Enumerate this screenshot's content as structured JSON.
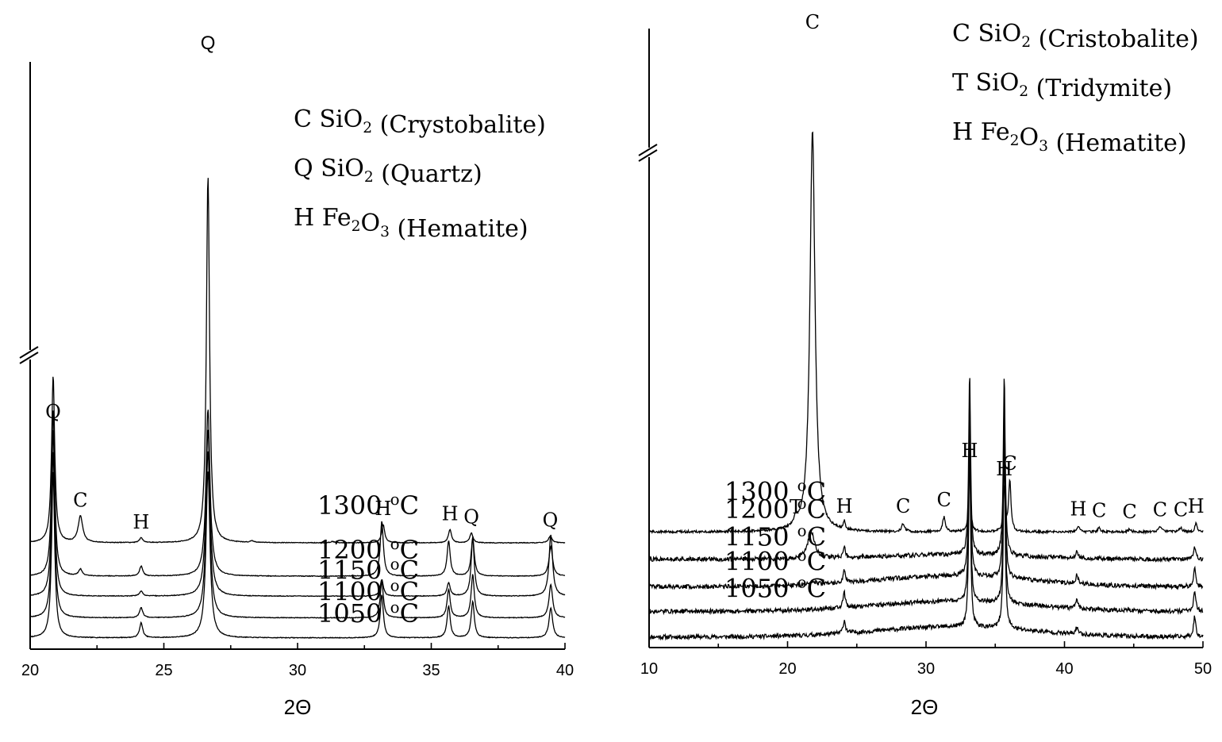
{
  "chart_data": [
    {
      "type": "line",
      "xlabel": "2Θ",
      "ylabel": "",
      "xlim": [
        20,
        40
      ],
      "xticks": [
        20,
        25,
        30,
        35,
        40
      ],
      "axis_break": true,
      "legend": {
        "placement": "top-right",
        "entries": [
          {
            "symbol": "C",
            "formula": [
              "SiO",
              "2"
            ],
            "name": "(Crystobalite)"
          },
          {
            "symbol": "Q",
            "formula": [
              "SiO",
              "2"
            ],
            "name": "(Quartz)"
          },
          {
            "symbol": "H",
            "formula": [
              "Fe",
              "2",
              "O",
              "3"
            ],
            "name": "(Hematite)"
          }
        ]
      },
      "series": [
        {
          "name": "1050 °C",
          "baseline": 0.2,
          "peaks": [
            {
              "x": 20.86,
              "h": 10,
              "w": 0.07
            },
            {
              "x": 24.15,
              "h": 0.9,
              "w": 0.07
            },
            {
              "x": 26.65,
              "h": 10,
              "w": 0.09
            },
            {
              "x": 33.15,
              "h": 2.6,
              "w": 0.07
            },
            {
              "x": 35.65,
              "h": 1.9,
              "w": 0.07
            },
            {
              "x": 36.55,
              "h": 2.2,
              "w": 0.07
            },
            {
              "x": 39.47,
              "h": 1.8,
              "w": 0.08
            }
          ]
        },
        {
          "name": "1100 °C",
          "baseline": 1.4,
          "peaks": [
            {
              "x": 20.86,
              "h": 10,
              "w": 0.07
            },
            {
              "x": 24.15,
              "h": 0.6,
              "w": 0.07
            },
            {
              "x": 26.65,
              "h": 10,
              "w": 0.09
            },
            {
              "x": 33.15,
              "h": 2.2,
              "w": 0.07
            },
            {
              "x": 35.65,
              "h": 1.7,
              "w": 0.07
            },
            {
              "x": 36.55,
              "h": 2.6,
              "w": 0.07
            },
            {
              "x": 39.47,
              "h": 2.0,
              "w": 0.08
            }
          ]
        },
        {
          "name": "1150 °C",
          "baseline": 2.7,
          "peaks": [
            {
              "x": 20.86,
              "h": 10,
              "w": 0.07
            },
            {
              "x": 24.15,
              "h": 0.3,
              "w": 0.07
            },
            {
              "x": 26.65,
              "h": 10,
              "w": 0.09
            },
            {
              "x": 33.15,
              "h": 1.0,
              "w": 0.07
            },
            {
              "x": 35.65,
              "h": 0.8,
              "w": 0.07
            },
            {
              "x": 36.55,
              "h": 3.5,
              "w": 0.07
            },
            {
              "x": 39.47,
              "h": 3.7,
              "w": 0.08
            }
          ]
        },
        {
          "name": "1200 °C",
          "baseline": 3.9,
          "peaks": [
            {
              "x": 20.86,
              "h": 10,
              "w": 0.07
            },
            {
              "x": 21.88,
              "h": 0.4,
              "w": 0.08
            },
            {
              "x": 24.15,
              "h": 0.6,
              "w": 0.07
            },
            {
              "x": 26.65,
              "h": 10,
              "w": 0.09
            },
            {
              "x": 33.15,
              "h": 3.3,
              "w": 0.07
            },
            {
              "x": 35.65,
              "h": 2.1,
              "w": 0.07
            },
            {
              "x": 36.55,
              "h": 2.3,
              "w": 0.07
            },
            {
              "x": 39.47,
              "h": 1.8,
              "w": 0.08
            }
          ]
        },
        {
          "name": "1300 °C",
          "baseline": 5.9,
          "peaks": [
            {
              "x": 20.86,
              "h": 10,
              "w": 0.07
            },
            {
              "x": 21.88,
              "h": 1.6,
              "w": 0.1
            },
            {
              "x": 24.15,
              "h": 0.3,
              "w": 0.07
            },
            {
              "x": 26.65,
              "h": 22,
              "w": 0.07
            },
            {
              "x": 28.3,
              "h": 0.1,
              "w": 0.08
            },
            {
              "x": 31.3,
              "h": 0.08,
              "w": 0.08
            },
            {
              "x": 33.2,
              "h": 1.1,
              "w": 0.07
            },
            {
              "x": 35.7,
              "h": 0.8,
              "w": 0.07
            },
            {
              "x": 36.5,
              "h": 0.6,
              "w": 0.07
            },
            {
              "x": 39.45,
              "h": 0.4,
              "w": 0.08
            }
          ]
        }
      ],
      "peak_labels": [
        {
          "text": "Q",
          "x": 26.65,
          "series": "1300 °C",
          "top": true
        },
        {
          "text": "Q",
          "x": 20.86,
          "series": "1300 °C"
        },
        {
          "text": "C",
          "x": 21.88,
          "series": "1300 °C"
        },
        {
          "text": "H",
          "x": 24.15,
          "series": "1300 °C"
        },
        {
          "text": "H",
          "x": 33.2,
          "series": "1300 °C"
        },
        {
          "text": "H",
          "x": 35.7,
          "series": "1300 °C"
        },
        {
          "text": "Q",
          "x": 36.5,
          "series": "1300 °C"
        },
        {
          "text": "Q",
          "x": 39.45,
          "series": "1300 °C"
        }
      ]
    },
    {
      "type": "line",
      "xlabel": "2Θ",
      "ylabel": "",
      "xlim": [
        10,
        50
      ],
      "xticks": [
        10,
        20,
        30,
        40,
        50
      ],
      "axis_break": true,
      "legend": {
        "placement": "top-right",
        "entries": [
          {
            "symbol": "C",
            "formula": [
              "SiO",
              "2"
            ],
            "name": "(Cristobalite)"
          },
          {
            "symbol": "T",
            "formula": [
              "SiO",
              "2"
            ],
            "name": "(Tridymite)"
          },
          {
            "symbol": "H",
            "formula": [
              "Fe",
              "2",
              "O",
              "3"
            ],
            "name": "(Hematite)"
          }
        ]
      },
      "series": [
        {
          "name": "1050 °C",
          "baseline": 0.15,
          "hump": 0.55,
          "peaks": [
            {
              "x": 24.1,
              "h": 0.7,
              "w": 0.1
            },
            {
              "x": 33.15,
              "h": 10,
              "w": 0.08
            },
            {
              "x": 35.65,
              "h": 10,
              "w": 0.08
            },
            {
              "x": 40.9,
              "h": 0.4,
              "w": 0.1
            },
            {
              "x": 49.4,
              "h": 1.1,
              "w": 0.1
            }
          ]
        },
        {
          "name": "1100 °C",
          "baseline": 1.55,
          "hump": 0.55,
          "peaks": [
            {
              "x": 24.1,
              "h": 0.8,
              "w": 0.1
            },
            {
              "x": 33.15,
              "h": 10,
              "w": 0.08
            },
            {
              "x": 35.65,
              "h": 10,
              "w": 0.08
            },
            {
              "x": 40.9,
              "h": 0.5,
              "w": 0.1
            },
            {
              "x": 49.4,
              "h": 1.0,
              "w": 0.1
            }
          ]
        },
        {
          "name": "1150 °C",
          "baseline": 2.9,
          "hump": 0.6,
          "peaks": [
            {
              "x": 21.9,
              "h": 0.15,
              "w": 0.3
            },
            {
              "x": 24.1,
              "h": 0.7,
              "w": 0.1
            },
            {
              "x": 33.15,
              "h": 10,
              "w": 0.08
            },
            {
              "x": 35.65,
              "h": 10,
              "w": 0.08
            },
            {
              "x": 40.9,
              "h": 0.5,
              "w": 0.1
            },
            {
              "x": 49.4,
              "h": 1.0,
              "w": 0.1
            }
          ]
        },
        {
          "name": "1200 °C",
          "baseline": 4.4,
          "hump": 0.25,
          "peaks": [
            {
              "x": 21.7,
              "h": 1.5,
              "w": 0.28
            },
            {
              "x": 24.1,
              "h": 0.6,
              "w": 0.08
            },
            {
              "x": 33.15,
              "h": 10,
              "w": 0.08
            },
            {
              "x": 35.65,
              "h": 10,
              "w": 0.08
            },
            {
              "x": 40.9,
              "h": 0.4,
              "w": 0.1
            },
            {
              "x": 49.4,
              "h": 0.6,
              "w": 0.1
            }
          ]
        },
        {
          "name": "1300 °C",
          "baseline": 5.9,
          "hump": 0,
          "peaks": [
            {
              "x": 20.6,
              "h": 0.4,
              "w": 0.15
            },
            {
              "x": 21.8,
              "h": 22,
              "w": 0.22
            },
            {
              "x": 24.1,
              "h": 0.45,
              "w": 0.08
            },
            {
              "x": 28.35,
              "h": 0.45,
              "w": 0.12
            },
            {
              "x": 31.3,
              "h": 0.8,
              "w": 0.12
            },
            {
              "x": 33.15,
              "h": 3.5,
              "w": 0.08
            },
            {
              "x": 35.65,
              "h": 2.5,
              "w": 0.08
            },
            {
              "x": 36.05,
              "h": 2.8,
              "w": 0.1
            },
            {
              "x": 41.0,
              "h": 0.3,
              "w": 0.1
            },
            {
              "x": 42.5,
              "h": 0.2,
              "w": 0.12
            },
            {
              "x": 44.7,
              "h": 0.15,
              "w": 0.12
            },
            {
              "x": 46.9,
              "h": 0.25,
              "w": 0.15
            },
            {
              "x": 48.4,
              "h": 0.25,
              "w": 0.12
            },
            {
              "x": 49.5,
              "h": 0.45,
              "w": 0.1
            }
          ]
        }
      ],
      "peak_labels": [
        {
          "text": "C",
          "x": 21.8,
          "series": "1300 °C",
          "top": true
        },
        {
          "text": "T",
          "x": 20.6,
          "series": "1300 °C"
        },
        {
          "text": "H",
          "x": 24.1,
          "series": "1300 °C"
        },
        {
          "text": "C",
          "x": 28.35,
          "series": "1300 °C"
        },
        {
          "text": "C",
          "x": 31.3,
          "series": "1300 °C"
        },
        {
          "text": "H",
          "x": 33.15,
          "series": "1300 °C"
        },
        {
          "text": "H",
          "x": 35.65,
          "series": "1300 °C"
        },
        {
          "text": "C",
          "x": 36.05,
          "series": "1300 °C"
        },
        {
          "text": "H",
          "x": 41.0,
          "series": "1300 °C"
        },
        {
          "text": "C",
          "x": 42.5,
          "series": "1300 °C"
        },
        {
          "text": "C",
          "x": 44.7,
          "series": "1300 °C"
        },
        {
          "text": "C",
          "x": 46.9,
          "series": "1300 °C"
        },
        {
          "text": "C",
          "x": 48.4,
          "series": "1300 °C"
        },
        {
          "text": "H",
          "x": 49.5,
          "series": "1300 °C"
        }
      ]
    }
  ]
}
